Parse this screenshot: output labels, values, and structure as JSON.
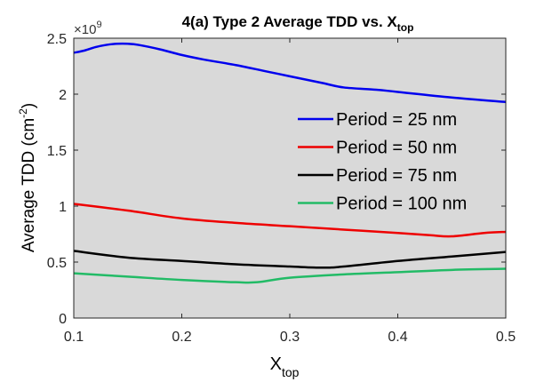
{
  "chart_data": {
    "type": "line",
    "title_main": "4(a) Type 2 Average TDD vs. X",
    "title_sub": "top",
    "xlabel_main": "X",
    "xlabel_sub": "top",
    "ylabel_main": "Average TDD (cm",
    "ylabel_sup": "-2",
    "ylabel_close": ")",
    "exponent_label_base": "×10",
    "exponent_label_power": "9",
    "xlim": [
      0.1,
      0.5
    ],
    "ylim": [
      0,
      2.5
    ],
    "xticks": [
      "0.1",
      "0.2",
      "0.3",
      "0.4",
      "0.5"
    ],
    "yticks": [
      "0",
      "0.5",
      "1",
      "1.5",
      "2",
      "2.5"
    ],
    "grid": false,
    "legend_position": "center-right",
    "axes_background": "#d9d9d9",
    "series": [
      {
        "name": "Period = 25 nm",
        "color": "#0000ee",
        "x": [
          0.1,
          0.11,
          0.12,
          0.13,
          0.14,
          0.15,
          0.16,
          0.18,
          0.2,
          0.22,
          0.25,
          0.28,
          0.3,
          0.33,
          0.35,
          0.38,
          0.4,
          0.45,
          0.5
        ],
        "y": [
          2.37,
          2.39,
          2.42,
          2.44,
          2.45,
          2.45,
          2.44,
          2.4,
          2.35,
          2.31,
          2.26,
          2.2,
          2.16,
          2.1,
          2.06,
          2.04,
          2.02,
          1.97,
          1.93
        ]
      },
      {
        "name": "Period = 50 nm",
        "color": "#ee0000",
        "x": [
          0.1,
          0.15,
          0.2,
          0.25,
          0.3,
          0.35,
          0.4,
          0.43,
          0.45,
          0.48,
          0.5
        ],
        "y": [
          1.02,
          0.96,
          0.89,
          0.85,
          0.82,
          0.79,
          0.76,
          0.74,
          0.73,
          0.76,
          0.77
        ]
      },
      {
        "name": "Period = 75 nm",
        "color": "#000000",
        "x": [
          0.1,
          0.15,
          0.2,
          0.25,
          0.3,
          0.33,
          0.35,
          0.4,
          0.45,
          0.5
        ],
        "y": [
          0.6,
          0.54,
          0.51,
          0.48,
          0.46,
          0.45,
          0.46,
          0.51,
          0.55,
          0.59
        ]
      },
      {
        "name": "Period = 100 nm",
        "color": "#22bb66",
        "x": [
          0.1,
          0.15,
          0.2,
          0.25,
          0.27,
          0.3,
          0.35,
          0.4,
          0.45,
          0.5
        ],
        "y": [
          0.4,
          0.37,
          0.34,
          0.32,
          0.32,
          0.36,
          0.39,
          0.41,
          0.43,
          0.44
        ]
      }
    ]
  }
}
